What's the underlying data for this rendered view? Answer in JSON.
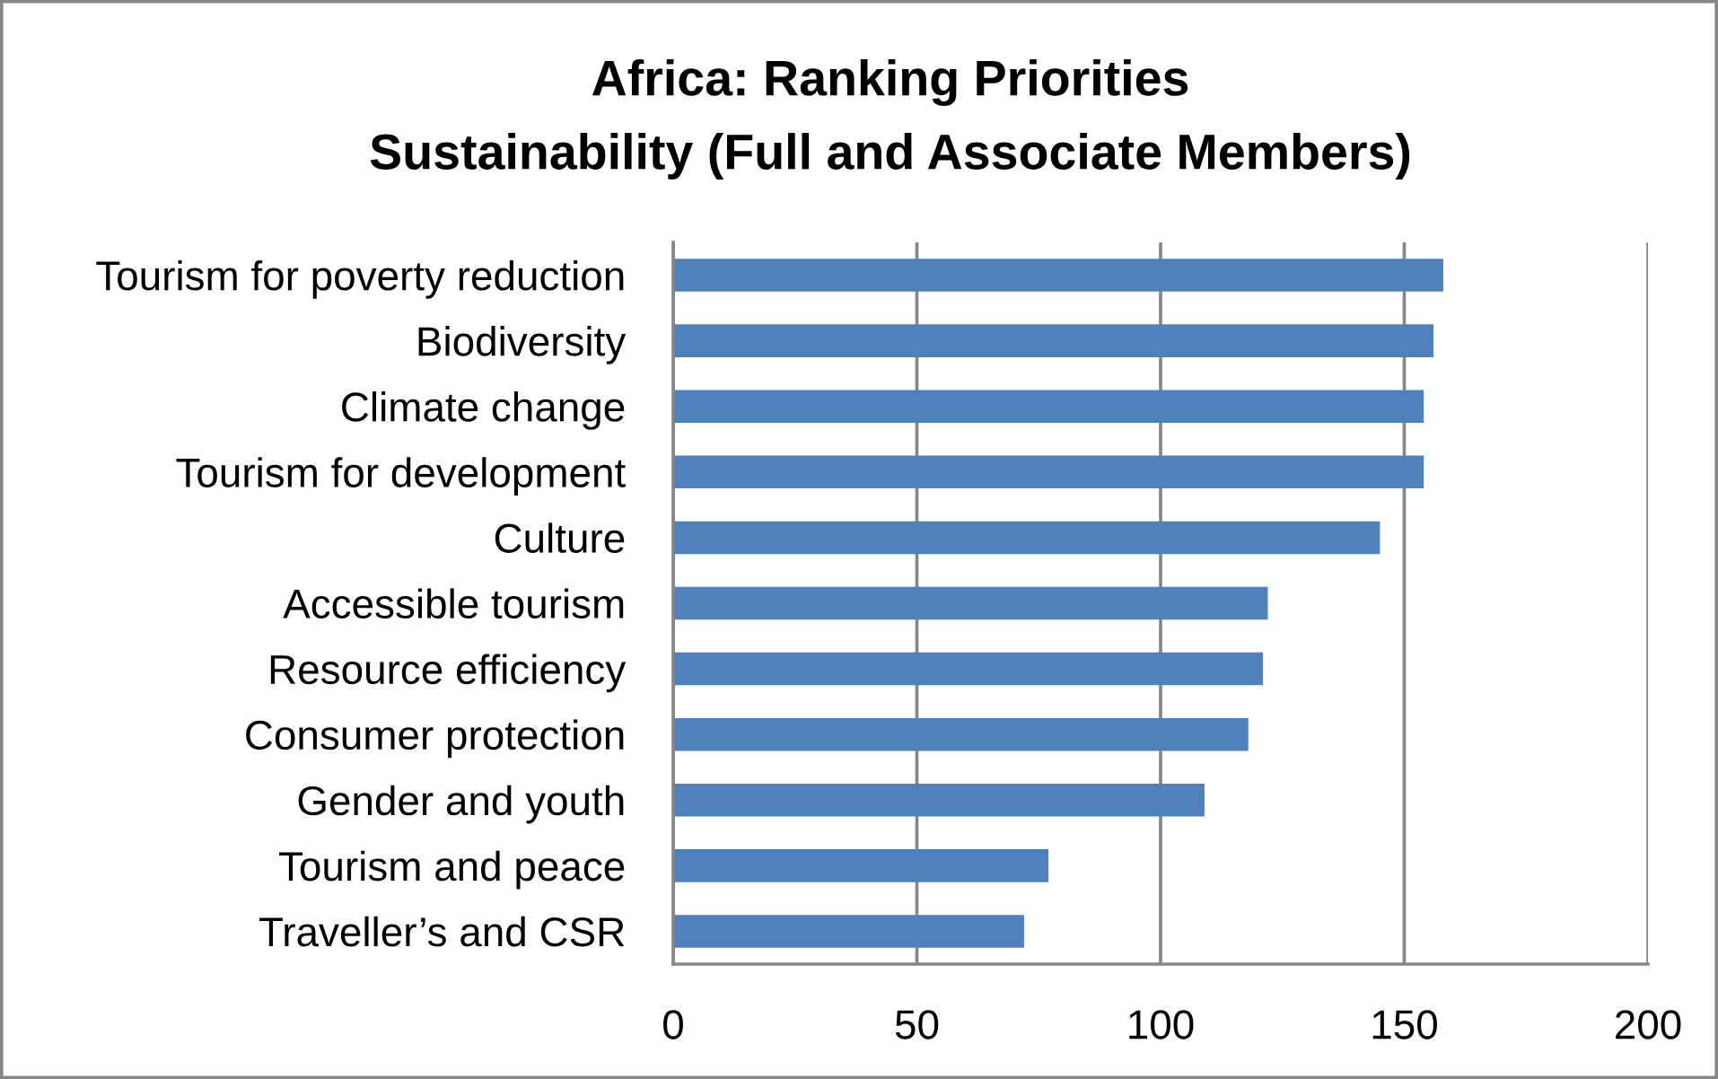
{
  "chart_data": {
    "type": "bar",
    "orientation": "horizontal",
    "title": "Africa: Ranking Priorities",
    "subtitle": "Sustainability (Full and Associate Members)",
    "categories": [
      "Tourism for poverty reduction",
      "Biodiversity",
      "Climate change",
      "Tourism for development",
      "Culture",
      "Accessible tourism",
      "Resource efficiency",
      "Consumer protection",
      "Gender and youth",
      "Tourism and peace",
      "Traveller’s and CSR"
    ],
    "values": [
      158,
      156,
      154,
      154,
      145,
      122,
      121,
      118,
      109,
      77,
      72
    ],
    "color": "#4f81bd",
    "xlim": [
      0,
      200
    ],
    "xticks": [
      0,
      50,
      100,
      150,
      200
    ],
    "grid": "x"
  }
}
